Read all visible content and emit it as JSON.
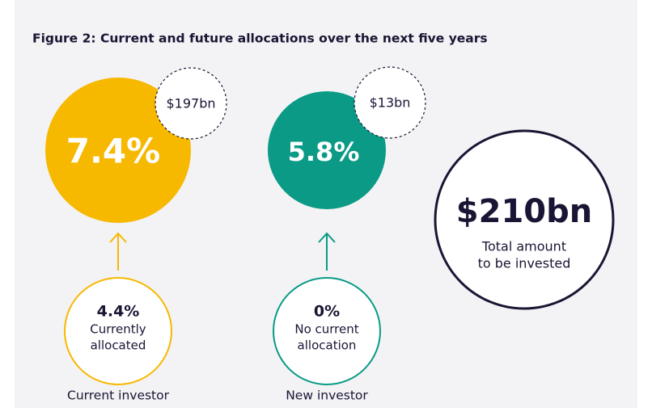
{
  "title": "Figure 2: Current and future allocations over the next five years",
  "groups": [
    {
      "future_share": "7.4%",
      "future_amount": "$197bn",
      "current_share": "4.4%",
      "current_note": [
        "Currently",
        "allocated"
      ],
      "label": "Current investor"
    },
    {
      "future_share": "5.8%",
      "future_amount": "$13bn",
      "current_share": "0%",
      "current_note": [
        "No current",
        "allocation"
      ],
      "label": "New investor"
    }
  ],
  "total": {
    "amount": "$210bn",
    "note": [
      "Total amount",
      "to be invested"
    ]
  }
}
